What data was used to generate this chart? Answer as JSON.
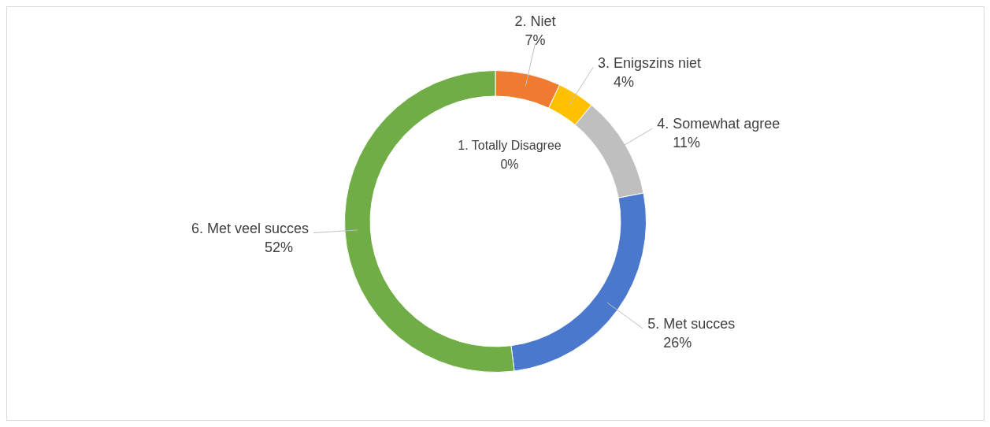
{
  "chart_data": {
    "type": "donut",
    "categories": [
      "1. Totally Disagree",
      "2. Niet",
      "3. Enigszins niet",
      "4. Somewhat agree",
      "5. Met succes",
      "6. Met veel succes"
    ],
    "values": [
      0,
      7,
      4,
      11,
      26,
      52
    ],
    "colors": [
      "#4472c4",
      "#ee7b30",
      "#ffc000",
      "#bfbfbf",
      "#4a78cc",
      "#70ad47"
    ],
    "value_labels": [
      "0%",
      "7%",
      "4%",
      "11%",
      "26%",
      "52%"
    ],
    "legend": false
  }
}
